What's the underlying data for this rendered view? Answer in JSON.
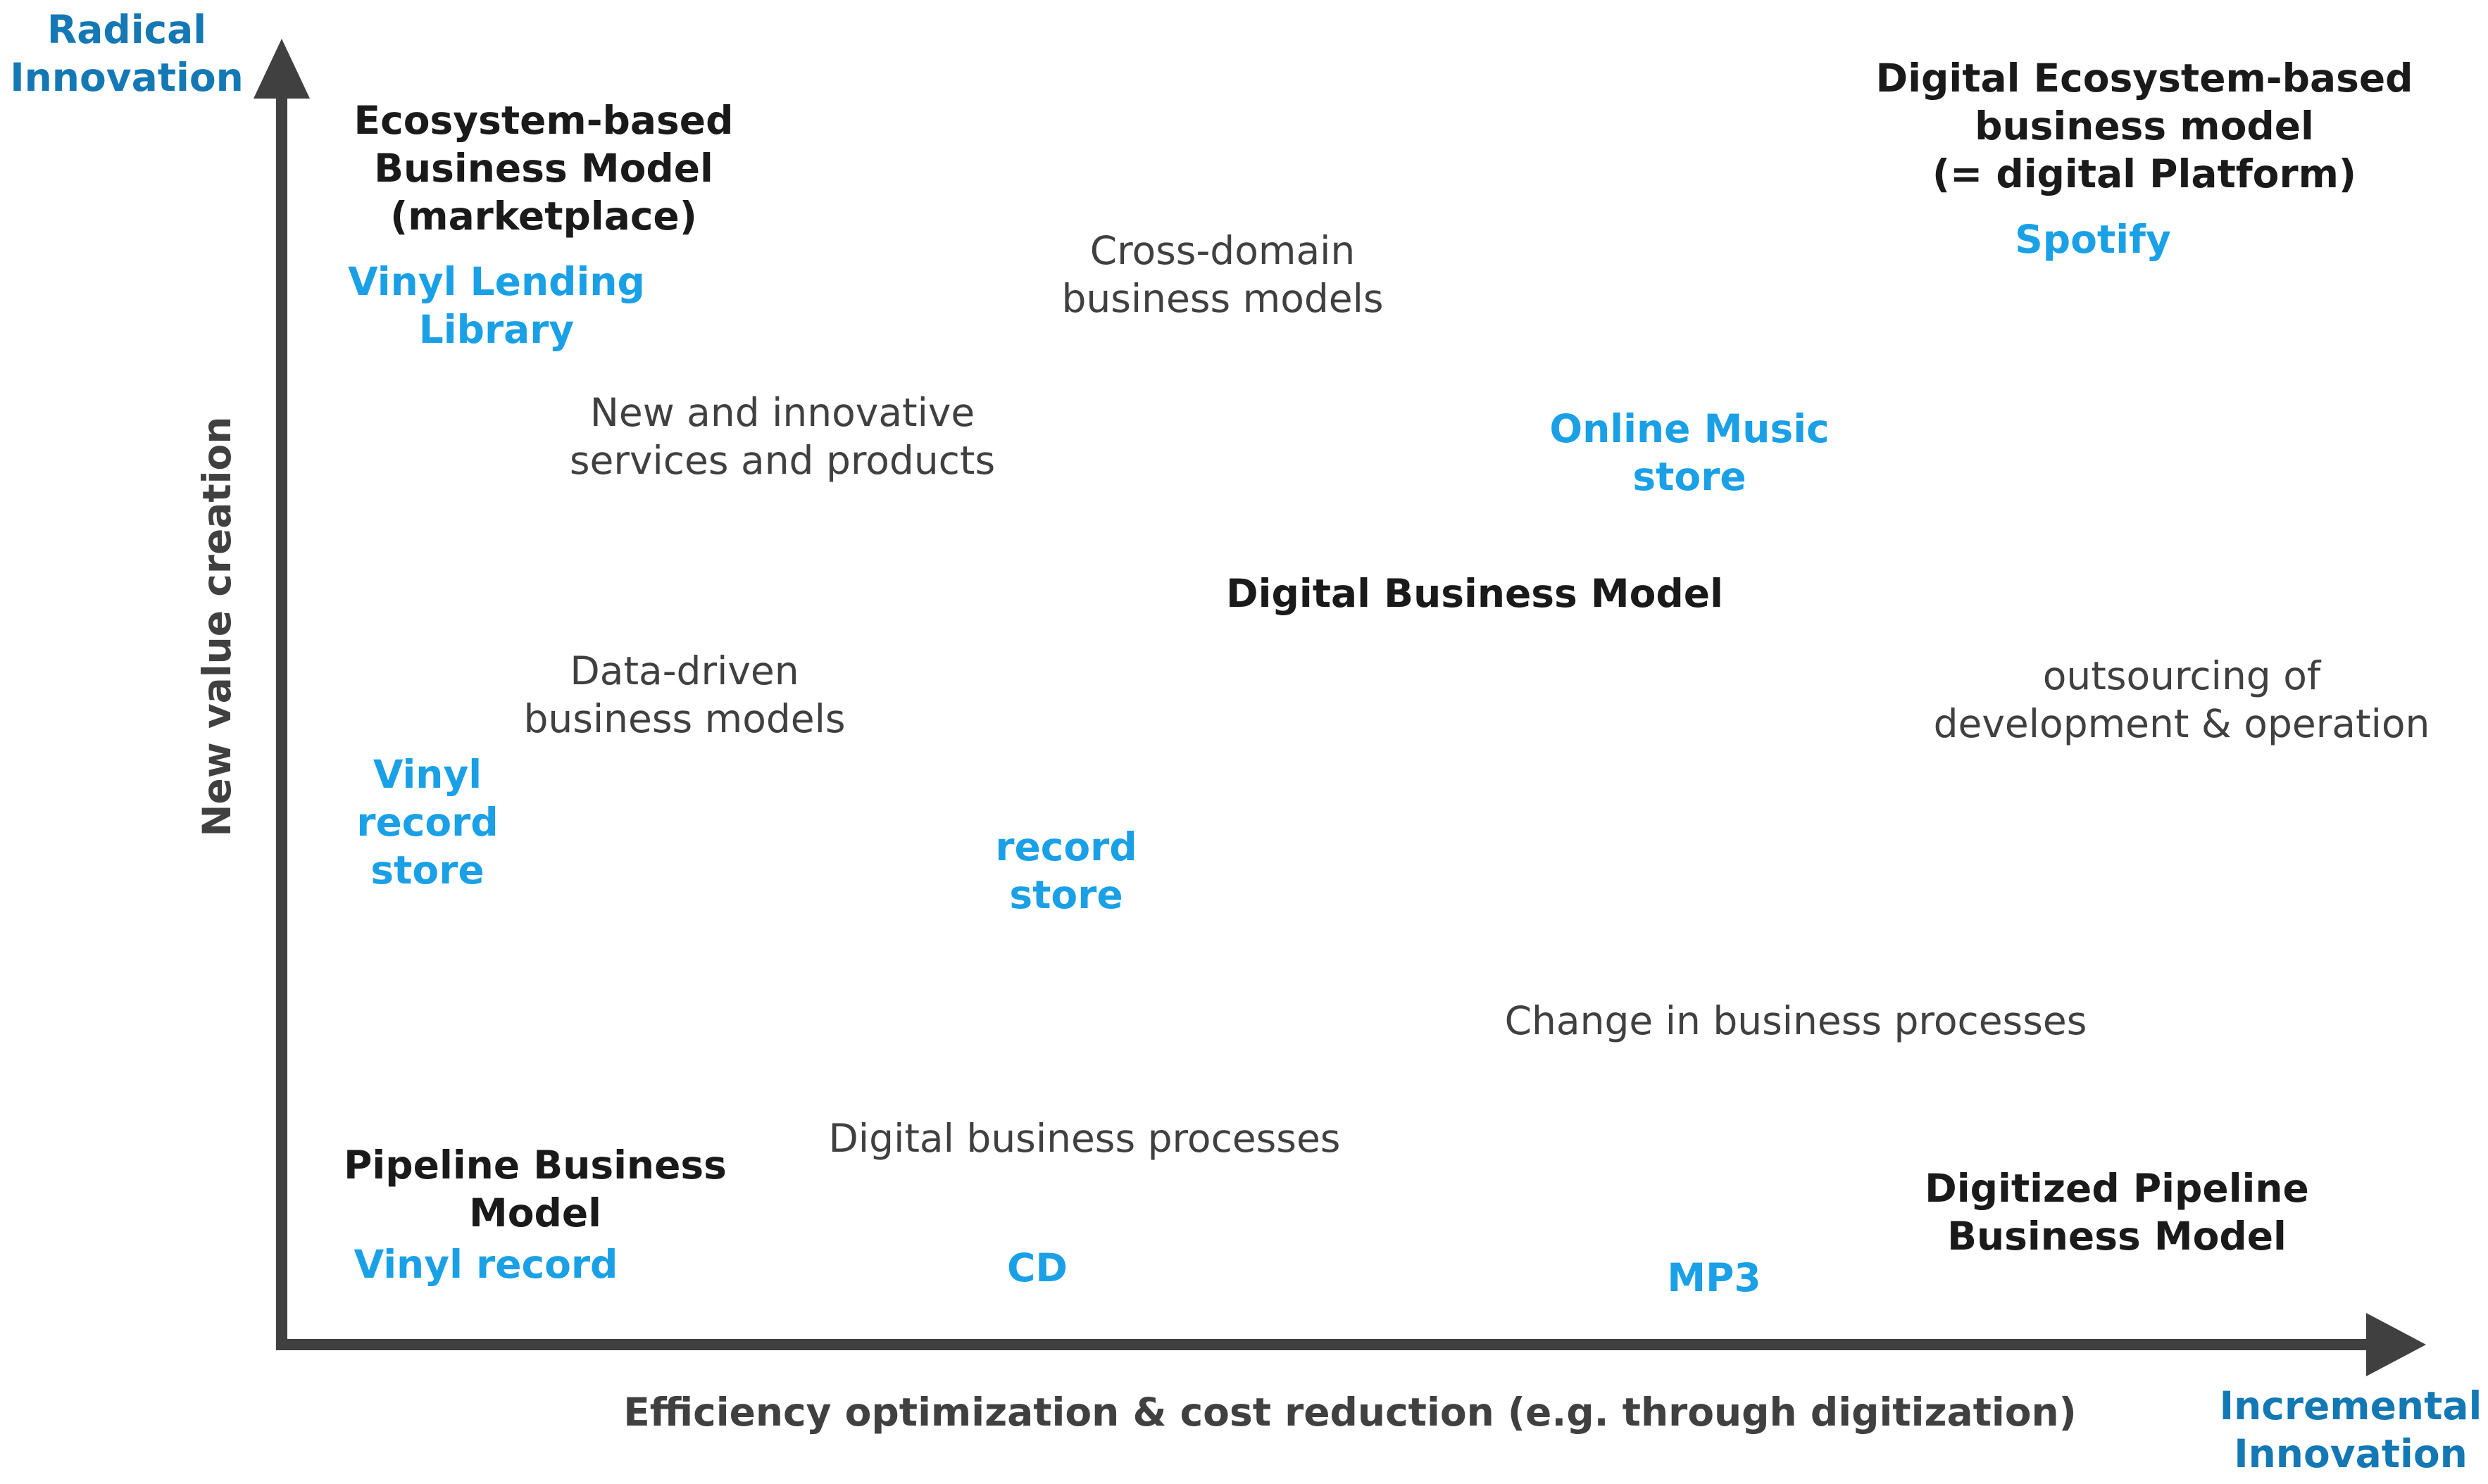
{
  "colors": {
    "axis": "#404040",
    "axis_end_label": "#1478b4",
    "business_model": "#1a1a1a",
    "concept": "#404040",
    "example": "#1aa0e6"
  },
  "axes": {
    "y_title": "New value creation",
    "y_end": "Radical\nInnovation",
    "x_title": "Efficiency optimization & cost reduction (e.g. through digitization)",
    "x_end": "Incremental\nInnovation"
  },
  "business_models": {
    "ecosystem": "Ecosystem-based\nBusiness Model\n(marketplace)",
    "digital_ecosystem": "Digital Ecosystem-based\nbusiness model\n(= digital Platform)",
    "digital": "Digital Business Model",
    "pipeline": "Pipeline Business\nModel",
    "digitized_pipeline": "Digitized Pipeline\nBusiness Model"
  },
  "concepts": {
    "cross_domain": "Cross-domain\nbusiness models",
    "new_services": "New and innovative\nservices and products",
    "data_driven": "Data-driven\nbusiness models",
    "outsourcing": "outsourcing of\ndevelopment & operation",
    "change_processes": "Change in business processes",
    "digital_processes": "Digital business processes"
  },
  "examples": {
    "vinyl_lending": "Vinyl Lending\nLibrary",
    "spotify": "Spotify",
    "online_music": "Online Music\nstore",
    "vinyl_record_store": "Vinyl\nrecord\nstore",
    "record_store": "record\nstore",
    "vinyl_record": "Vinyl record",
    "cd": "CD",
    "mp3": "MP3"
  }
}
